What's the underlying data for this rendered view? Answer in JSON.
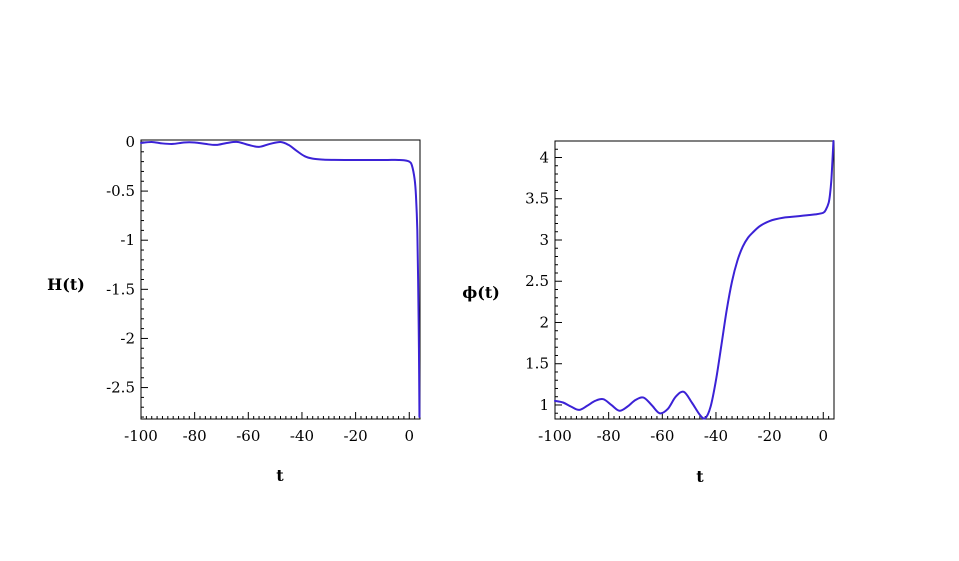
{
  "chart_data": [
    {
      "type": "line",
      "xlabel": "t",
      "ylabel": "H(t)",
      "xlim": [
        -100,
        4
      ],
      "ylim": [
        -2.82,
        0.02
      ],
      "xticks": [
        -100,
        -80,
        -60,
        -40,
        -20,
        0
      ],
      "xtick_labels": [
        "-100",
        "-80",
        "-60",
        "-40",
        "-20",
        "0"
      ],
      "yticks": [
        0,
        -0.5,
        -1,
        -1.5,
        -2,
        -2.5
      ],
      "ytick_labels": [
        "0",
        "-0.5",
        "-1",
        "-1.5",
        "-2",
        "-2.5"
      ],
      "series": [
        {
          "color": "#3b22d6",
          "x": [
            -100,
            -96,
            -92,
            -88,
            -84,
            -80,
            -76,
            -72,
            -68,
            -64,
            -60,
            -56,
            -52,
            -48,
            -45,
            -42,
            -39,
            -36,
            -32,
            -28,
            -24,
            -20,
            -16,
            -12,
            -8,
            -4,
            -2,
            0,
            1,
            2,
            2.5,
            3,
            3.3,
            3.6,
            3.8
          ],
          "y": [
            -0.01,
            0.0,
            -0.015,
            -0.02,
            -0.005,
            -0.005,
            -0.02,
            -0.03,
            -0.01,
            0.0,
            -0.03,
            -0.05,
            -0.02,
            0.0,
            -0.03,
            -0.09,
            -0.145,
            -0.17,
            -0.18,
            -0.182,
            -0.183,
            -0.183,
            -0.183,
            -0.183,
            -0.183,
            -0.183,
            -0.186,
            -0.2,
            -0.24,
            -0.38,
            -0.55,
            -0.9,
            -1.4,
            -2.1,
            -2.8
          ]
        }
      ]
    },
    {
      "type": "line",
      "xlabel": "t",
      "ylabel": "ϕ(t)",
      "xlim": [
        -100,
        4
      ],
      "ylim": [
        0.83,
        4.2
      ],
      "xticks": [
        -100,
        -80,
        -60,
        -40,
        -20,
        0
      ],
      "xtick_labels": [
        "-100",
        "-80",
        "-60",
        "-40",
        "-20",
        "0"
      ],
      "yticks": [
        1,
        1.5,
        2,
        2.5,
        3,
        3.5,
        4
      ],
      "ytick_labels": [
        "1",
        "1.5",
        "2",
        "2.5",
        "3",
        "3.5",
        "4"
      ],
      "series": [
        {
          "color": "#3b22d6",
          "x": [
            -100,
            -97,
            -94,
            -91,
            -88,
            -85,
            -82,
            -79,
            -76,
            -73,
            -70,
            -67,
            -64,
            -61,
            -58,
            -55,
            -52,
            -49,
            -46,
            -44,
            -42,
            -40,
            -38,
            -36,
            -34,
            -32,
            -30,
            -28,
            -26,
            -24,
            -22,
            -20,
            -18,
            -15,
            -12,
            -9,
            -6,
            -3,
            0,
            1,
            2,
            2.5,
            3,
            3.4,
            3.8
          ],
          "y": [
            1.05,
            1.03,
            0.98,
            0.94,
            0.99,
            1.05,
            1.07,
            1.0,
            0.93,
            0.98,
            1.06,
            1.09,
            1.0,
            0.9,
            0.95,
            1.1,
            1.16,
            1.03,
            0.88,
            0.84,
            0.98,
            1.3,
            1.72,
            2.15,
            2.5,
            2.75,
            2.92,
            3.03,
            3.1,
            3.16,
            3.2,
            3.23,
            3.25,
            3.27,
            3.28,
            3.29,
            3.3,
            3.31,
            3.33,
            3.37,
            3.45,
            3.55,
            3.72,
            3.95,
            4.2
          ]
        }
      ]
    }
  ]
}
